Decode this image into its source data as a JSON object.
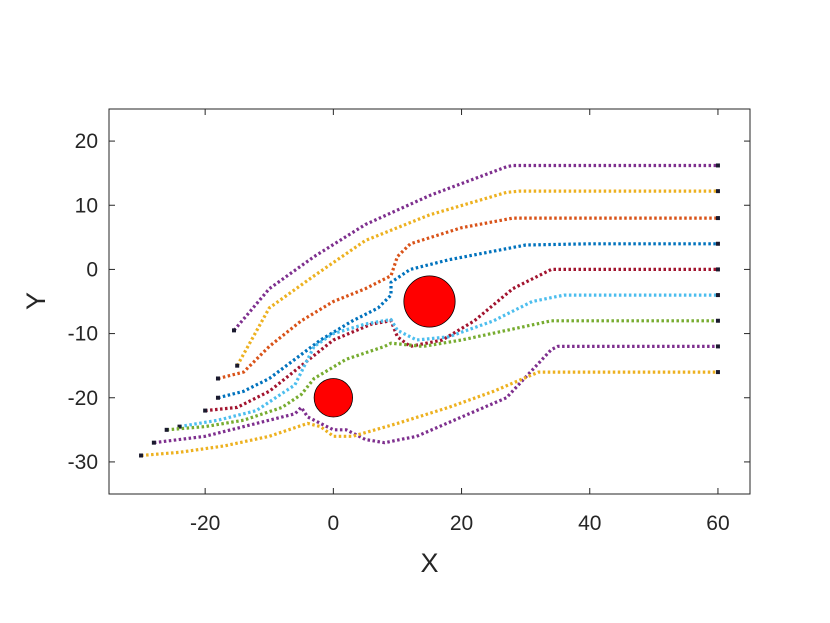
{
  "chart_data": {
    "type": "line",
    "title": "",
    "xlabel": "X",
    "ylabel": "Y",
    "xlim": [
      -35,
      65
    ],
    "ylim": [
      -35,
      25
    ],
    "xticks": [
      -20,
      0,
      20,
      40,
      60
    ],
    "yticks": [
      -30,
      -20,
      -10,
      0,
      10,
      20
    ],
    "xtick_labels": [
      "-20",
      "0",
      "20",
      "40",
      "60"
    ],
    "ytick_labels": [
      "-30",
      "-20",
      "-10",
      "0",
      "10",
      "20"
    ],
    "grid": false,
    "line_style": "dotted",
    "series": [
      {
        "color": "#7E2F8E",
        "points": [
          [
            -15.5,
            -9.5
          ],
          [
            -10,
            -3
          ],
          [
            -3,
            2
          ],
          [
            5,
            7
          ],
          [
            15,
            11.5
          ],
          [
            27,
            16
          ],
          [
            28,
            16.2
          ],
          [
            40,
            16.2
          ],
          [
            60,
            16.2
          ]
        ]
      },
      {
        "color": "#EDB120",
        "points": [
          [
            -15,
            -15
          ],
          [
            -10,
            -6
          ],
          [
            -3,
            -1
          ],
          [
            5,
            4.5
          ],
          [
            15,
            8.5
          ],
          [
            27,
            12
          ],
          [
            29,
            12.2
          ],
          [
            40,
            12.2
          ],
          [
            60,
            12.2
          ]
        ]
      },
      {
        "color": "#D95319",
        "points": [
          [
            -18,
            -17
          ],
          [
            -14,
            -16
          ],
          [
            -10,
            -12
          ],
          [
            -5,
            -8
          ],
          [
            0,
            -5
          ],
          [
            5,
            -3
          ],
          [
            9,
            -1
          ],
          [
            10,
            2
          ],
          [
            12,
            4
          ],
          [
            20,
            6.5
          ],
          [
            28,
            8
          ],
          [
            40,
            8
          ],
          [
            60,
            8
          ]
        ]
      },
      {
        "color": "#0072BD",
        "points": [
          [
            -18,
            -20
          ],
          [
            -14,
            -19
          ],
          [
            -10,
            -17
          ],
          [
            -6,
            -14
          ],
          [
            -2,
            -11
          ],
          [
            3,
            -8
          ],
          [
            7,
            -6
          ],
          [
            9,
            -4
          ],
          [
            9,
            -2
          ],
          [
            12,
            0
          ],
          [
            18,
            1.5
          ],
          [
            30,
            3.8
          ],
          [
            40,
            4
          ],
          [
            60,
            4
          ]
        ]
      },
      {
        "color": "#A2142F",
        "points": [
          [
            -20,
            -22
          ],
          [
            -15,
            -21.5
          ],
          [
            -10,
            -19
          ],
          [
            -5,
            -15
          ],
          [
            0,
            -11
          ],
          [
            6,
            -8.5
          ],
          [
            9,
            -8
          ],
          [
            10,
            -10.5
          ],
          [
            12,
            -12
          ],
          [
            17,
            -11
          ],
          [
            22,
            -8
          ],
          [
            28,
            -3
          ],
          [
            34,
            0
          ],
          [
            40,
            0
          ],
          [
            60,
            0
          ]
        ]
      },
      {
        "color": "#4DBEEE",
        "points": [
          [
            -24,
            -24.5
          ],
          [
            -18,
            -23.5
          ],
          [
            -12,
            -22
          ],
          [
            -6,
            -18
          ],
          [
            -3,
            -12
          ],
          [
            0,
            -10
          ],
          [
            5,
            -8.5
          ],
          [
            9,
            -7.8
          ],
          [
            10,
            -9.5
          ],
          [
            13,
            -11
          ],
          [
            18,
            -10.5
          ],
          [
            25,
            -8
          ],
          [
            31,
            -5
          ],
          [
            36,
            -4
          ],
          [
            40,
            -4
          ],
          [
            60,
            -4
          ]
        ]
      },
      {
        "color": "#77AC30",
        "points": [
          [
            -26,
            -25
          ],
          [
            -20,
            -24.5
          ],
          [
            -14,
            -23.5
          ],
          [
            -8,
            -21.5
          ],
          [
            -5,
            -19.5
          ],
          [
            -3,
            -17
          ],
          [
            2,
            -14
          ],
          [
            8,
            -12
          ],
          [
            9,
            -11.5
          ],
          [
            14,
            -12
          ],
          [
            20,
            -11
          ],
          [
            27,
            -9.5
          ],
          [
            34,
            -8
          ],
          [
            40,
            -8
          ],
          [
            60,
            -8
          ]
        ]
      },
      {
        "color": "#7E2F8E",
        "points": [
          [
            -28,
            -27
          ],
          [
            -20,
            -26
          ],
          [
            -12,
            -24
          ],
          [
            -6,
            -22.5
          ],
          [
            -5,
            -21.5
          ],
          [
            -4,
            -23
          ],
          [
            0,
            -25
          ],
          [
            2,
            -25
          ],
          [
            5,
            -26.5
          ],
          [
            8,
            -27
          ],
          [
            13,
            -26
          ],
          [
            20,
            -23
          ],
          [
            27,
            -20
          ],
          [
            34,
            -12.5
          ],
          [
            35,
            -12
          ],
          [
            40,
            -12
          ],
          [
            60,
            -12
          ]
        ]
      },
      {
        "color": "#EDB120",
        "points": [
          [
            -30,
            -29
          ],
          [
            -24,
            -28.5
          ],
          [
            -17,
            -27.5
          ],
          [
            -10,
            -26
          ],
          [
            -4,
            -24
          ],
          [
            -2,
            -24.5
          ],
          [
            0,
            -26
          ],
          [
            3,
            -26
          ],
          [
            10,
            -24
          ],
          [
            18,
            -21.5
          ],
          [
            25,
            -19
          ],
          [
            32,
            -16
          ],
          [
            40,
            -16
          ],
          [
            60,
            -16
          ]
        ]
      }
    ],
    "obstacles": [
      {
        "x": 15,
        "y": -5,
        "r": 4,
        "color": "#FF0000"
      },
      {
        "x": 0,
        "y": -20,
        "r": 3,
        "color": "#FF0000"
      }
    ]
  }
}
